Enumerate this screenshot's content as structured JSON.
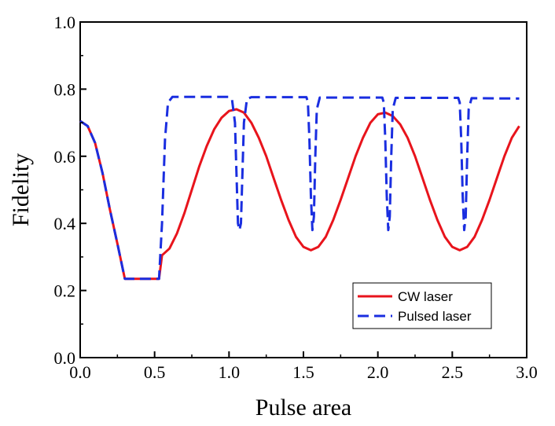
{
  "chart_data": {
    "type": "line",
    "xlabel": "Pulse area",
    "ylabel": "Fidelity",
    "xlim": [
      0.0,
      3.0
    ],
    "ylim": [
      0.0,
      1.0
    ],
    "x_ticks": [
      "0.0",
      "0.5",
      "1.0",
      "1.5",
      "2.0",
      "2.5",
      "3.0"
    ],
    "y_ticks": [
      "0.0",
      "0.2",
      "0.4",
      "0.6",
      "0.8",
      "1.0"
    ],
    "grid": false,
    "legend_position": "bottom-right",
    "series": [
      {
        "name": "CW laser",
        "color": "#e8141c",
        "style": "solid",
        "points": [
          [
            0.0,
            0.705
          ],
          [
            0.05,
            0.69
          ],
          [
            0.1,
            0.64
          ],
          [
            0.15,
            0.55
          ],
          [
            0.2,
            0.44
          ],
          [
            0.25,
            0.34
          ],
          [
            0.3,
            0.235
          ],
          [
            0.53,
            0.235
          ],
          [
            0.55,
            0.305
          ],
          [
            0.6,
            0.325
          ],
          [
            0.65,
            0.37
          ],
          [
            0.7,
            0.43
          ],
          [
            0.75,
            0.5
          ],
          [
            0.8,
            0.57
          ],
          [
            0.85,
            0.63
          ],
          [
            0.9,
            0.68
          ],
          [
            0.95,
            0.715
          ],
          [
            1.0,
            0.735
          ],
          [
            1.05,
            0.74
          ],
          [
            1.1,
            0.73
          ],
          [
            1.15,
            0.7
          ],
          [
            1.2,
            0.655
          ],
          [
            1.25,
            0.6
          ],
          [
            1.3,
            0.535
          ],
          [
            1.35,
            0.47
          ],
          [
            1.4,
            0.41
          ],
          [
            1.45,
            0.36
          ],
          [
            1.5,
            0.33
          ],
          [
            1.55,
            0.32
          ],
          [
            1.6,
            0.33
          ],
          [
            1.65,
            0.36
          ],
          [
            1.7,
            0.41
          ],
          [
            1.75,
            0.47
          ],
          [
            1.8,
            0.535
          ],
          [
            1.85,
            0.6
          ],
          [
            1.9,
            0.655
          ],
          [
            1.95,
            0.7
          ],
          [
            2.0,
            0.725
          ],
          [
            2.05,
            0.73
          ],
          [
            2.1,
            0.72
          ],
          [
            2.15,
            0.695
          ],
          [
            2.2,
            0.655
          ],
          [
            2.25,
            0.6
          ],
          [
            2.3,
            0.535
          ],
          [
            2.35,
            0.47
          ],
          [
            2.4,
            0.41
          ],
          [
            2.45,
            0.36
          ],
          [
            2.5,
            0.33
          ],
          [
            2.55,
            0.32
          ],
          [
            2.6,
            0.33
          ],
          [
            2.65,
            0.36
          ],
          [
            2.7,
            0.41
          ],
          [
            2.75,
            0.47
          ],
          [
            2.8,
            0.535
          ],
          [
            2.85,
            0.6
          ],
          [
            2.9,
            0.655
          ],
          [
            2.95,
            0.69
          ]
        ]
      },
      {
        "name": "Pulsed laser",
        "color": "#1a2ee0",
        "style": "dashed",
        "points": [
          [
            0.0,
            0.705
          ],
          [
            0.05,
            0.69
          ],
          [
            0.1,
            0.64
          ],
          [
            0.15,
            0.55
          ],
          [
            0.2,
            0.44
          ],
          [
            0.25,
            0.34
          ],
          [
            0.3,
            0.235
          ],
          [
            0.53,
            0.235
          ],
          [
            0.55,
            0.4
          ],
          [
            0.57,
            0.65
          ],
          [
            0.59,
            0.76
          ],
          [
            0.62,
            0.777
          ],
          [
            1.0,
            0.777
          ],
          [
            1.02,
            0.77
          ],
          [
            1.04,
            0.7
          ],
          [
            1.05,
            0.55
          ],
          [
            1.06,
            0.4
          ],
          [
            1.07,
            0.38
          ],
          [
            1.08,
            0.4
          ],
          [
            1.09,
            0.55
          ],
          [
            1.1,
            0.7
          ],
          [
            1.12,
            0.77
          ],
          [
            1.15,
            0.776
          ],
          [
            1.52,
            0.776
          ],
          [
            1.53,
            0.76
          ],
          [
            1.54,
            0.65
          ],
          [
            1.55,
            0.48
          ],
          [
            1.56,
            0.38
          ],
          [
            1.57,
            0.42
          ],
          [
            1.58,
            0.6
          ],
          [
            1.59,
            0.74
          ],
          [
            1.61,
            0.775
          ],
          [
            2.03,
            0.775
          ],
          [
            2.04,
            0.76
          ],
          [
            2.05,
            0.65
          ],
          [
            2.06,
            0.48
          ],
          [
            2.07,
            0.38
          ],
          [
            2.08,
            0.42
          ],
          [
            2.09,
            0.6
          ],
          [
            2.1,
            0.74
          ],
          [
            2.12,
            0.774
          ],
          [
            2.54,
            0.774
          ],
          [
            2.55,
            0.76
          ],
          [
            2.56,
            0.65
          ],
          [
            2.57,
            0.48
          ],
          [
            2.58,
            0.38
          ],
          [
            2.59,
            0.42
          ],
          [
            2.6,
            0.6
          ],
          [
            2.61,
            0.74
          ],
          [
            2.63,
            0.773
          ],
          [
            2.95,
            0.772
          ]
        ]
      }
    ]
  }
}
